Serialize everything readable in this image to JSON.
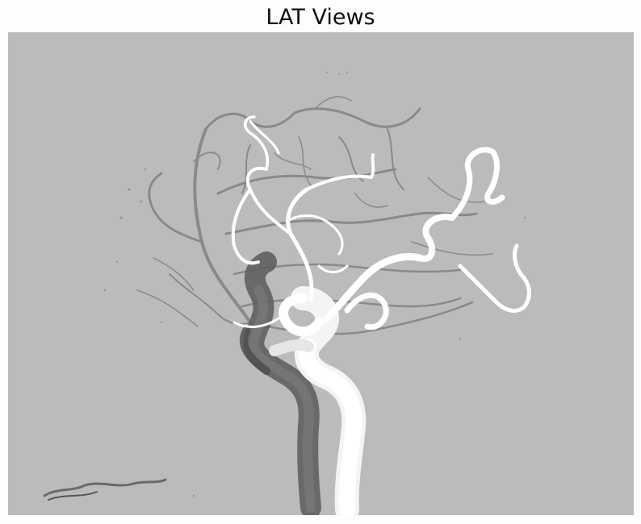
{
  "figure": {
    "title": "LAT Views"
  },
  "colors": {
    "page_background": "#fdfdfd",
    "image_background": "#bbbbbb",
    "contrast_vessels": "#ffffff",
    "mask_vessels": "#555555",
    "fine_vessels": "#7a7a7a"
  }
}
